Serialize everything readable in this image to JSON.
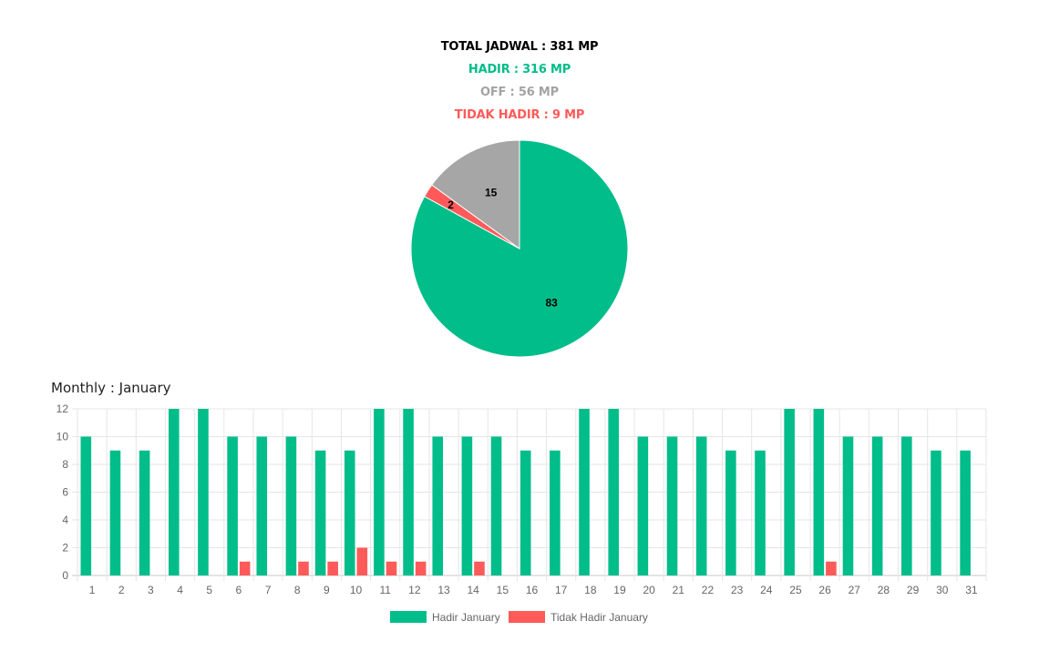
{
  "summary": {
    "total": "TOTAL JADWAL : 381 MP",
    "hadir": "HADIR : 316 MP",
    "off": "OFF : 56 MP",
    "tidak_hadir": "TIDAK HADIR : 9 MP"
  },
  "colors": {
    "hadir": "#00bd8a",
    "off": "#a6a6a6",
    "tidak_hadir": "#ff5a5a"
  },
  "chart_data": [
    {
      "type": "pie",
      "slices": [
        {
          "key": "hadir",
          "value": 83,
          "label": "83"
        },
        {
          "key": "tidak_hadir",
          "value": 2,
          "label": "2"
        },
        {
          "key": "off",
          "value": 15,
          "label": "15"
        }
      ]
    },
    {
      "type": "bar",
      "title": "Monthly : January",
      "categories": [
        "1",
        "2",
        "3",
        "4",
        "5",
        "6",
        "7",
        "8",
        "9",
        "10",
        "11",
        "12",
        "13",
        "14",
        "15",
        "16",
        "17",
        "18",
        "19",
        "20",
        "21",
        "22",
        "23",
        "24",
        "25",
        "26",
        "27",
        "28",
        "29",
        "30",
        "31"
      ],
      "series": [
        {
          "name": "Hadir January",
          "color": "#00bd8a",
          "values": [
            10,
            9,
            9,
            12,
            12,
            10,
            10,
            10,
            9,
            9,
            12,
            12,
            10,
            10,
            10,
            9,
            9,
            12,
            12,
            10,
            10,
            10,
            9,
            9,
            12,
            12,
            10,
            10,
            10,
            9,
            9
          ]
        },
        {
          "name": "Tidak Hadir January",
          "color": "#ff5a5a",
          "values": [
            0,
            0,
            0,
            0,
            0,
            1,
            0,
            1,
            1,
            2,
            1,
            1,
            0,
            1,
            0,
            0,
            0,
            0,
            0,
            0,
            0,
            0,
            0,
            0,
            0,
            1,
            0,
            0,
            0,
            0,
            0
          ]
        }
      ],
      "ylim": [
        0,
        12
      ],
      "yticks": [
        0,
        2,
        4,
        6,
        8,
        10,
        12
      ],
      "grid": true,
      "legend": "bottom"
    }
  ]
}
